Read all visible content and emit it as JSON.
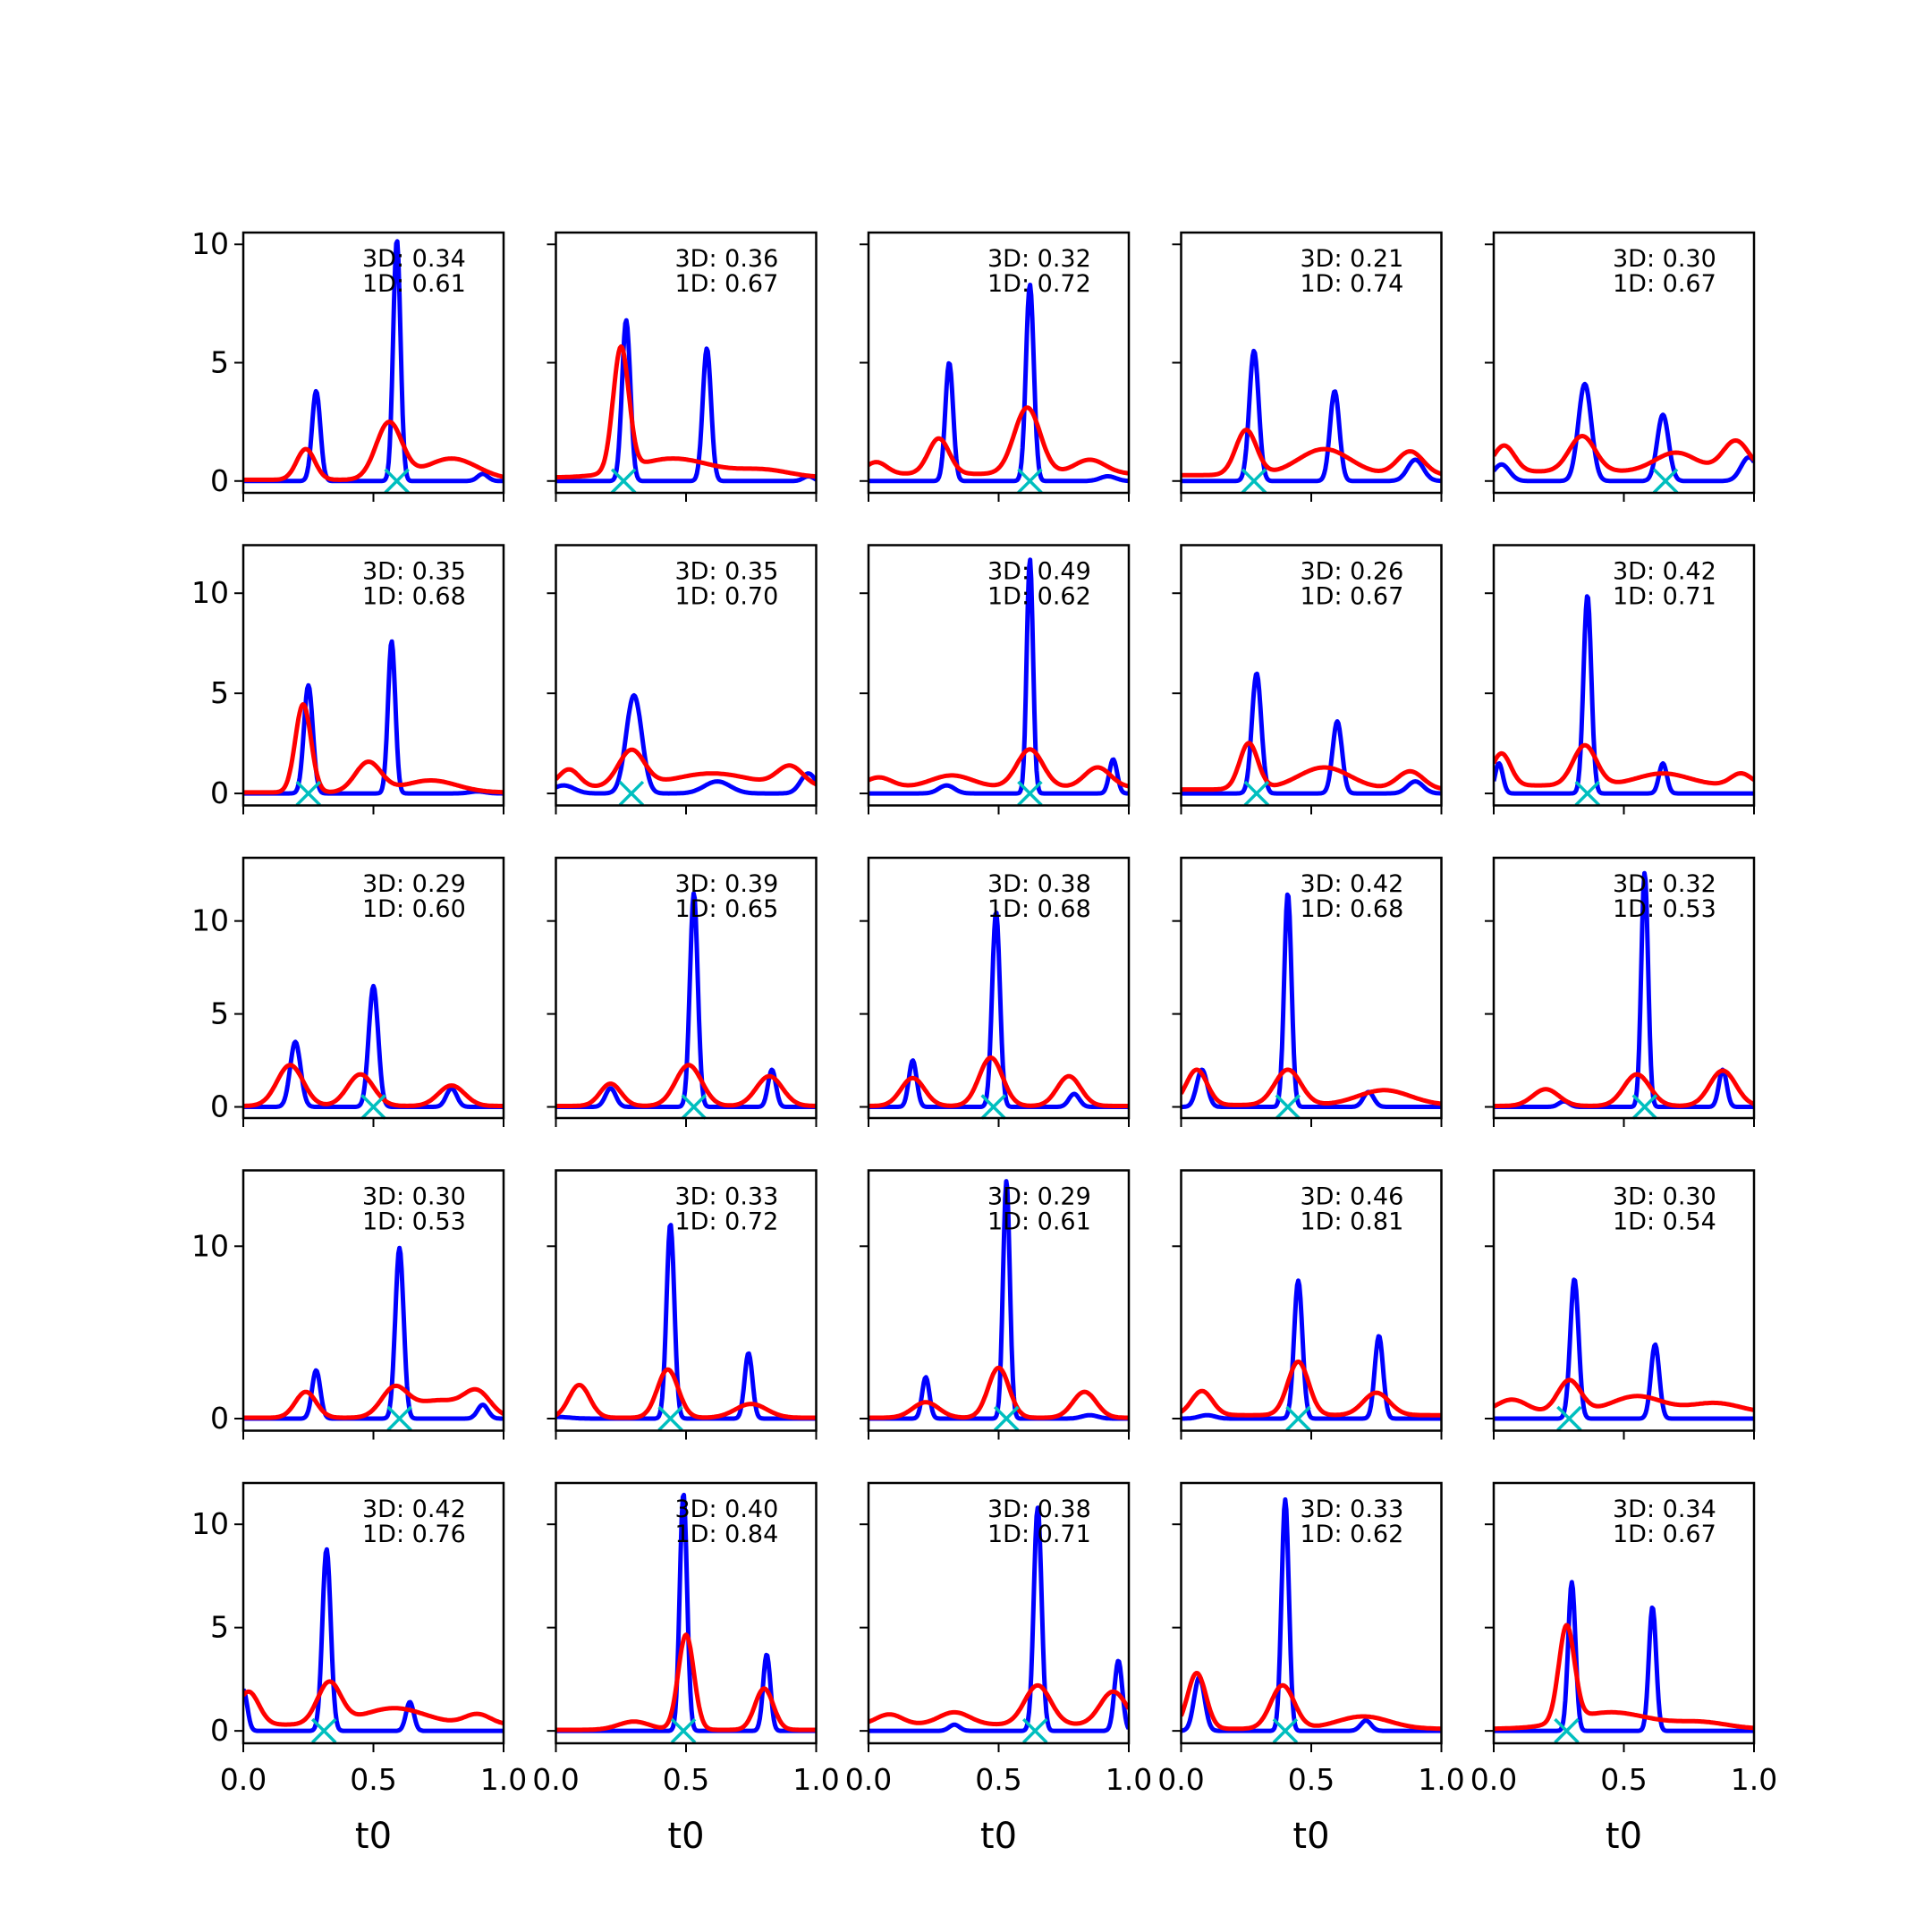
{
  "chart_data": {
    "type": "line",
    "layout": {
      "rows": 5,
      "cols": 5,
      "sharex": true,
      "sharey": "row"
    },
    "xlim": [
      0.0,
      1.0
    ],
    "xticks": [
      "0.0",
      "0.5",
      "1.0"
    ],
    "xlabel": "t0",
    "colors": {
      "blue_series": "#0000ff",
      "red_series": "#ff0000",
      "marker": "#00bfbf"
    },
    "rows": [
      {
        "ylim": [
          -0.5,
          10.5
        ],
        "yticks": [
          0,
          5,
          10
        ]
      },
      {
        "ylim": [
          -0.6,
          12.4
        ],
        "yticks": [
          0,
          5,
          10
        ]
      },
      {
        "ylim": [
          -0.6,
          13.4
        ],
        "yticks": [
          0,
          5,
          10
        ]
      },
      {
        "ylim": [
          -0.7,
          14.4
        ],
        "yticks": [
          0,
          10
        ]
      },
      {
        "ylim": [
          -0.6,
          12.0
        ],
        "yticks": [
          0,
          5,
          10
        ]
      }
    ],
    "panels": [
      {
        "label_3d": "3D: 0.34",
        "label_1d": "1D: 0.61",
        "marker_x": 0.59,
        "blue": [
          [
            0.0,
            0,
            0.008
          ],
          [
            0.28,
            3.8,
            0.016
          ],
          [
            0.59,
            10.2,
            0.014
          ],
          [
            0.92,
            0.3,
            0.02
          ]
        ],
        "red": [
          [
            0.0,
            0,
            0.0
          ],
          [
            0.24,
            1.3,
            0.035
          ],
          [
            0.56,
            2.4,
            0.05
          ],
          [
            0.8,
            0.9,
            0.1
          ]
        ],
        "red_base": 0.05
      },
      {
        "label_3d": "3D: 0.36",
        "label_1d": "1D: 0.67",
        "marker_x": 0.26,
        "blue": [
          [
            0.27,
            6.8,
            0.016
          ],
          [
            0.58,
            5.6,
            0.016
          ],
          [
            0.97,
            0.2,
            0.02
          ]
        ],
        "red": [
          [
            0.25,
            5.2,
            0.03
          ],
          [
            0.45,
            0.8,
            0.15
          ],
          [
            0.8,
            0.3,
            0.1
          ]
        ],
        "red_base": 0.15
      },
      {
        "label_3d": "3D: 0.32",
        "label_1d": "1D: 0.72",
        "marker_x": 0.62,
        "blue": [
          [
            0.31,
            5.0,
            0.015
          ],
          [
            0.62,
            8.3,
            0.015
          ],
          [
            0.92,
            0.2,
            0.03
          ]
        ],
        "red": [
          [
            0.03,
            0.5,
            0.04
          ],
          [
            0.27,
            1.5,
            0.04
          ],
          [
            0.61,
            2.8,
            0.05
          ],
          [
            0.85,
            0.6,
            0.06
          ]
        ],
        "red_base": 0.3
      },
      {
        "label_3d": "3D: 0.21",
        "label_1d": "1D: 0.74",
        "marker_x": 0.28,
        "blue": [
          [
            0.28,
            5.5,
            0.018
          ],
          [
            0.59,
            3.8,
            0.018
          ],
          [
            0.9,
            0.9,
            0.03
          ]
        ],
        "red": [
          [
            0.25,
            1.9,
            0.04
          ],
          [
            0.55,
            1.1,
            0.1
          ],
          [
            0.88,
            1.0,
            0.05
          ]
        ],
        "red_base": 0.25
      },
      {
        "label_3d": "3D: 0.30",
        "label_1d": "1D: 0.67",
        "marker_x": 0.66,
        "blue": [
          [
            0.03,
            0.7,
            0.03
          ],
          [
            0.35,
            4.1,
            0.025
          ],
          [
            0.65,
            2.8,
            0.022
          ],
          [
            0.98,
            1.0,
            0.03
          ]
        ],
        "red": [
          [
            0.04,
            1.1,
            0.04
          ],
          [
            0.34,
            1.5,
            0.05
          ],
          [
            0.7,
            0.8,
            0.08
          ],
          [
            0.93,
            1.3,
            0.05
          ]
        ],
        "red_base": 0.4
      },
      {
        "label_3d": "3D: 0.35",
        "label_1d": "1D: 0.68",
        "marker_x": 0.25,
        "blue": [
          [
            0.25,
            5.4,
            0.017
          ],
          [
            0.57,
            7.6,
            0.014
          ],
          [
            0.9,
            0.1,
            0.03
          ]
        ],
        "red": [
          [
            0.23,
            4.4,
            0.03
          ],
          [
            0.48,
            1.5,
            0.05
          ],
          [
            0.72,
            0.6,
            0.1
          ]
        ],
        "red_base": 0.05
      },
      {
        "label_3d": "3D: 0.35",
        "label_1d": "1D: 0.70",
        "marker_x": 0.29,
        "blue": [
          [
            0.03,
            0.4,
            0.04
          ],
          [
            0.3,
            4.9,
            0.03
          ],
          [
            0.62,
            0.6,
            0.05
          ],
          [
            0.97,
            1.0,
            0.03
          ]
        ],
        "red": [
          [
            0.05,
            0.9,
            0.04
          ],
          [
            0.29,
            1.8,
            0.05
          ],
          [
            0.6,
            0.7,
            0.15
          ],
          [
            0.9,
            1.0,
            0.05
          ]
        ],
        "red_base": 0.3
      },
      {
        "label_3d": "3D: 0.49",
        "label_1d": "1D: 0.62",
        "marker_x": 0.62,
        "blue": [
          [
            0.3,
            0.4,
            0.03
          ],
          [
            0.62,
            11.7,
            0.012
          ],
          [
            0.94,
            1.7,
            0.015
          ]
        ],
        "red": [
          [
            0.04,
            0.5,
            0.05
          ],
          [
            0.32,
            0.6,
            0.08
          ],
          [
            0.62,
            1.9,
            0.05
          ],
          [
            0.88,
            1.0,
            0.05
          ]
        ],
        "red_base": 0.3
      },
      {
        "label_3d": "3D: 0.26",
        "label_1d": "1D: 0.67",
        "marker_x": 0.29,
        "blue": [
          [
            0.29,
            6.0,
            0.018
          ],
          [
            0.6,
            3.6,
            0.018
          ],
          [
            0.9,
            0.6,
            0.03
          ]
        ],
        "red": [
          [
            0.26,
            2.3,
            0.035
          ],
          [
            0.55,
            1.1,
            0.1
          ],
          [
            0.88,
            0.9,
            0.05
          ]
        ],
        "red_base": 0.2
      },
      {
        "label_3d": "3D: 0.42",
        "label_1d": "1D: 0.71",
        "marker_x": 0.36,
        "blue": [
          [
            0.02,
            1.5,
            0.015
          ],
          [
            0.36,
            9.9,
            0.015
          ],
          [
            0.65,
            1.5,
            0.015
          ]
        ],
        "red": [
          [
            0.03,
            1.6,
            0.035
          ],
          [
            0.35,
            2.0,
            0.045
          ],
          [
            0.65,
            0.6,
            0.1
          ],
          [
            0.95,
            0.6,
            0.04
          ]
        ],
        "red_base": 0.4
      },
      {
        "label_3d": "3D: 0.29",
        "label_1d": "1D: 0.60",
        "marker_x": 0.5,
        "blue": [
          [
            0.2,
            3.5,
            0.02
          ],
          [
            0.5,
            6.5,
            0.018
          ],
          [
            0.8,
            1.0,
            0.02
          ]
        ],
        "red": [
          [
            0.18,
            2.2,
            0.05
          ],
          [
            0.45,
            1.7,
            0.05
          ],
          [
            0.8,
            1.1,
            0.05
          ]
        ],
        "red_base": 0.05
      },
      {
        "label_3d": "3D: 0.39",
        "label_1d": "1D: 0.65",
        "marker_x": 0.53,
        "blue": [
          [
            0.21,
            1.0,
            0.02
          ],
          [
            0.53,
            11.5,
            0.015
          ],
          [
            0.83,
            2.0,
            0.015
          ]
        ],
        "red": [
          [
            0.21,
            1.2,
            0.04
          ],
          [
            0.51,
            2.2,
            0.05
          ],
          [
            0.82,
            1.6,
            0.05
          ]
        ],
        "red_base": 0.05
      },
      {
        "label_3d": "3D: 0.38",
        "label_1d": "1D: 0.68",
        "marker_x": 0.48,
        "blue": [
          [
            0.17,
            2.5,
            0.015
          ],
          [
            0.49,
            10.5,
            0.015
          ],
          [
            0.79,
            0.7,
            0.02
          ]
        ],
        "red": [
          [
            0.17,
            1.5,
            0.045
          ],
          [
            0.47,
            2.6,
            0.045
          ],
          [
            0.77,
            1.6,
            0.045
          ]
        ],
        "red_base": 0.05
      },
      {
        "label_3d": "3D: 0.42",
        "label_1d": "1D: 0.68",
        "marker_x": 0.41,
        "blue": [
          [
            0.08,
            2.0,
            0.02
          ],
          [
            0.41,
            11.5,
            0.014
          ],
          [
            0.72,
            0.8,
            0.02
          ]
        ],
        "red": [
          [
            0.06,
            1.9,
            0.04
          ],
          [
            0.41,
            1.9,
            0.05
          ],
          [
            0.78,
            0.8,
            0.1
          ]
        ],
        "red_base": 0.1
      },
      {
        "label_3d": "3D: 0.32",
        "label_1d": "1D: 0.53",
        "marker_x": 0.58,
        "blue": [
          [
            0.27,
            0.3,
            0.02
          ],
          [
            0.58,
            12.6,
            0.013
          ],
          [
            0.88,
            2.0,
            0.015
          ]
        ],
        "red": [
          [
            0.2,
            0.9,
            0.05
          ],
          [
            0.55,
            1.7,
            0.05
          ],
          [
            0.88,
            1.9,
            0.05
          ]
        ],
        "red_base": 0.05
      },
      {
        "label_3d": "3D: 0.30",
        "label_1d": "1D: 0.53",
        "marker_x": 0.6,
        "blue": [
          [
            0.28,
            2.8,
            0.016
          ],
          [
            0.6,
            9.9,
            0.016
          ],
          [
            0.92,
            0.8,
            0.02
          ]
        ],
        "red": [
          [
            0.24,
            1.5,
            0.04
          ],
          [
            0.58,
            1.6,
            0.05
          ],
          [
            0.75,
            1.0,
            0.1
          ],
          [
            0.9,
            1.3,
            0.05
          ]
        ],
        "red_base": 0.05
      },
      {
        "label_3d": "3D: 0.33",
        "label_1d": "1D: 0.72",
        "marker_x": 0.44,
        "blue": [
          [
            0.0,
            0.1,
            0.05
          ],
          [
            0.44,
            11.3,
            0.015
          ],
          [
            0.74,
            3.8,
            0.015
          ]
        ],
        "red": [
          [
            0.09,
            1.9,
            0.04
          ],
          [
            0.43,
            2.8,
            0.04
          ],
          [
            0.75,
            0.8,
            0.06
          ]
        ],
        "red_base": 0.05
      },
      {
        "label_3d": "3D: 0.29",
        "label_1d": "1D: 0.61",
        "marker_x": 0.53,
        "blue": [
          [
            0.22,
            2.4,
            0.014
          ],
          [
            0.53,
            13.8,
            0.013
          ],
          [
            0.85,
            0.2,
            0.03
          ]
        ],
        "red": [
          [
            0.22,
            0.9,
            0.05
          ],
          [
            0.5,
            2.9,
            0.04
          ],
          [
            0.83,
            1.5,
            0.045
          ]
        ],
        "red_base": 0.05
      },
      {
        "label_3d": "3D: 0.46",
        "label_1d": "1D: 0.81",
        "marker_x": 0.45,
        "blue": [
          [
            0.1,
            0.2,
            0.03
          ],
          [
            0.45,
            8.0,
            0.016
          ],
          [
            0.76,
            4.8,
            0.016
          ]
        ],
        "red": [
          [
            0.08,
            1.4,
            0.04
          ],
          [
            0.45,
            3.1,
            0.04
          ],
          [
            0.75,
            1.3,
            0.05
          ]
        ],
        "red_base": 0.2
      },
      {
        "label_3d": "3D: 0.30",
        "label_1d": "1D: 0.54",
        "marker_x": 0.29,
        "blue": [
          [
            0.31,
            8.1,
            0.016
          ],
          [
            0.62,
            4.3,
            0.016
          ]
        ],
        "red": [
          [
            0.07,
            0.8,
            0.06
          ],
          [
            0.29,
            1.9,
            0.045
          ],
          [
            0.55,
            1.0,
            0.1
          ],
          [
            0.85,
            0.6,
            0.1
          ]
        ],
        "red_base": 0.3
      },
      {
        "label_3d": "3D: 0.42",
        "label_1d": "1D: 0.76",
        "marker_x": 0.31,
        "blue": [
          [
            0.0,
            2.0,
            0.015
          ],
          [
            0.32,
            8.8,
            0.016
          ],
          [
            0.64,
            1.4,
            0.015
          ]
        ],
        "red": [
          [
            0.02,
            1.6,
            0.04
          ],
          [
            0.33,
            2.0,
            0.045
          ],
          [
            0.58,
            0.8,
            0.12
          ],
          [
            0.9,
            0.5,
            0.05
          ]
        ],
        "red_base": 0.3
      },
      {
        "label_3d": "3D: 0.40",
        "label_1d": "1D: 0.84",
        "marker_x": 0.49,
        "blue": [
          [
            0.49,
            11.5,
            0.014
          ],
          [
            0.81,
            3.7,
            0.014
          ]
        ],
        "red": [
          [
            0.3,
            0.4,
            0.06
          ],
          [
            0.5,
            4.6,
            0.03
          ],
          [
            0.8,
            2.0,
            0.035
          ]
        ],
        "red_base": 0.05
      },
      {
        "label_3d": "3D: 0.38",
        "label_1d": "1D: 0.71",
        "marker_x": 0.64,
        "blue": [
          [
            0.33,
            0.3,
            0.02
          ],
          [
            0.65,
            10.8,
            0.015
          ],
          [
            0.96,
            3.4,
            0.015
          ]
        ],
        "red": [
          [
            0.08,
            0.5,
            0.05
          ],
          [
            0.33,
            0.6,
            0.06
          ],
          [
            0.65,
            1.9,
            0.05
          ],
          [
            0.94,
            1.6,
            0.05
          ]
        ],
        "red_base": 0.3
      },
      {
        "label_3d": "3D: 0.33",
        "label_1d": "1D: 0.62",
        "marker_x": 0.4,
        "blue": [
          [
            0.07,
            2.6,
            0.02
          ],
          [
            0.4,
            11.2,
            0.014
          ],
          [
            0.71,
            0.5,
            0.02
          ]
        ],
        "red": [
          [
            0.06,
            2.7,
            0.035
          ],
          [
            0.39,
            2.1,
            0.045
          ],
          [
            0.7,
            0.6,
            0.1
          ]
        ],
        "red_base": 0.1
      },
      {
        "label_3d": "3D: 0.34",
        "label_1d": "1D: 0.67",
        "marker_x": 0.28,
        "blue": [
          [
            0.3,
            7.2,
            0.014
          ],
          [
            0.61,
            6.0,
            0.014
          ]
        ],
        "red": [
          [
            0.28,
            4.6,
            0.03
          ],
          [
            0.45,
            0.8,
            0.15
          ],
          [
            0.8,
            0.3,
            0.1
          ]
        ],
        "red_base": 0.1
      }
    ]
  }
}
